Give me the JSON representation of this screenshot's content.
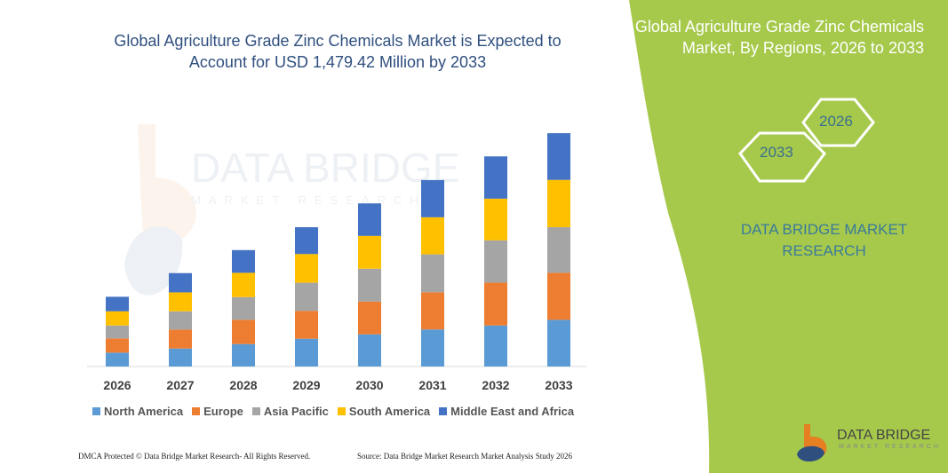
{
  "title": "Global Agriculture Grade Zinc Chemicals Market is Expected to Account for USD 1,479.42 Million by 2033",
  "side_panel": {
    "title": "Global Agriculture Grade Zinc Chemicals Market, By Regions, 2026 to 2033",
    "hex_start": "2026",
    "hex_end": "2033",
    "brand": "DATA BRIDGE MARKET RESEARCH",
    "color": "#a6c94c"
  },
  "footer": {
    "left": "DMCA Protected © Data Bridge Market Research-  All Rights Reserved.",
    "right": "Source: Data Bridge Market Research  Market Analysis Study 2026"
  },
  "logo": {
    "name": "DATA BRIDGE",
    "sub": "MARKET RESEARCH"
  },
  "watermark": "DATA BRIDGE MARKET RESEARCH",
  "chart_data": {
    "type": "bar",
    "stacked": true,
    "title": "Global Agriculture Grade Zinc Chemicals Market is Expected to Account for USD 1,479.42 Million by 2033",
    "categories": [
      "2026",
      "2027",
      "2028",
      "2029",
      "2030",
      "2031",
      "2032",
      "2033"
    ],
    "series": [
      {
        "name": "North America",
        "color": "#5b9bd5",
        "values": [
          88,
          114,
          142,
          176,
          204,
          235,
          260,
          296
        ]
      },
      {
        "name": "Europe",
        "color": "#ed7d31",
        "values": [
          90,
          120,
          154,
          177,
          208,
          236,
          272,
          298
        ]
      },
      {
        "name": "Asia Pacific",
        "color": "#a5a5a5",
        "values": [
          82,
          116,
          144,
          178,
          208,
          240,
          268,
          289
        ]
      },
      {
        "name": "South America",
        "color": "#ffc000",
        "values": [
          90,
          120,
          154,
          182,
          208,
          235,
          264,
          300
        ]
      },
      {
        "name": "Middle East and Africa",
        "color": "#4472c4",
        "values": [
          92,
          122,
          144,
          170,
          206,
          236,
          268,
          296
        ]
      }
    ],
    "ylim": [
      0,
      1479.42
    ],
    "y_axis_visible": false,
    "grid": false,
    "legend": "bottom"
  }
}
